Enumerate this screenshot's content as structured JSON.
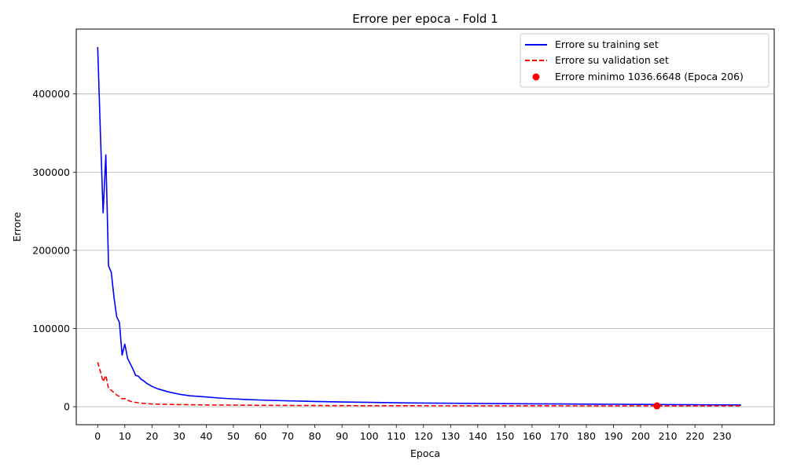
{
  "chart_data": {
    "type": "line",
    "title": "Errore per epoca - Fold 1",
    "xlabel": "Epoca",
    "ylabel": "Errore",
    "xlim": [
      -7.9,
      249.2
    ],
    "ylim": [
      -23000,
      483000
    ],
    "xticks": [
      0,
      10,
      20,
      30,
      40,
      50,
      60,
      70,
      80,
      90,
      100,
      110,
      120,
      130,
      140,
      150,
      160,
      170,
      180,
      190,
      200,
      210,
      220,
      230
    ],
    "yticks": [
      0,
      100000,
      200000,
      300000,
      400000
    ],
    "ytick_labels": [
      "0",
      "100000",
      "200000",
      "300000",
      "400000"
    ],
    "grid": "y-axis horizontal lines",
    "legend_position": "top-right",
    "series": [
      {
        "name": "Errore su training set",
        "color": "#0000ff",
        "style": "solid",
        "x": [
          0,
          1,
          2,
          3,
          4,
          5,
          6,
          7,
          8,
          9,
          10,
          11,
          12,
          13,
          14,
          15,
          16,
          17,
          18,
          19,
          20,
          22,
          24,
          26,
          28,
          30,
          32,
          34,
          36,
          38,
          40,
          45,
          50,
          55,
          60,
          70,
          80,
          90,
          100,
          110,
          120,
          130,
          140,
          150,
          160,
          170,
          180,
          190,
          200,
          206,
          210,
          220,
          230,
          237
        ],
        "y": [
          460000,
          350000,
          248000,
          322000,
          180000,
          172000,
          140000,
          115000,
          108000,
          66000,
          80000,
          62000,
          55000,
          48000,
          40000,
          39000,
          35000,
          33000,
          30000,
          28000,
          26000,
          23000,
          21000,
          19000,
          17500,
          16000,
          15000,
          14000,
          13500,
          13000,
          12500,
          11000,
          10000,
          9200,
          8500,
          7500,
          6700,
          6000,
          5500,
          5000,
          4700,
          4400,
          4100,
          3900,
          3700,
          3500,
          3300,
          3100,
          2900,
          2800,
          2700,
          2500,
          2300,
          2200
        ]
      },
      {
        "name": "Errore su validation set",
        "color": "#ff0000",
        "style": "dashed",
        "x": [
          0,
          1,
          2,
          3,
          4,
          5,
          6,
          7,
          8,
          9,
          10,
          11,
          12,
          13,
          14,
          15,
          16,
          18,
          20,
          25,
          30,
          40,
          50,
          60,
          80,
          100,
          150,
          206,
          237
        ],
        "y": [
          57000,
          45000,
          32000,
          40000,
          23000,
          21000,
          18000,
          15000,
          13000,
          10000,
          10500,
          8500,
          7000,
          6000,
          5500,
          5000,
          4500,
          4000,
          3500,
          3000,
          2700,
          2300,
          2000,
          1800,
          1500,
          1300,
          1150,
          1036.6648,
          1000
        ]
      }
    ],
    "markers": [
      {
        "name": "Errore minimo 1036.6648 (Epoca 206)",
        "color": "#ff0000",
        "x": 206,
        "y": 1036.6648
      }
    ]
  }
}
